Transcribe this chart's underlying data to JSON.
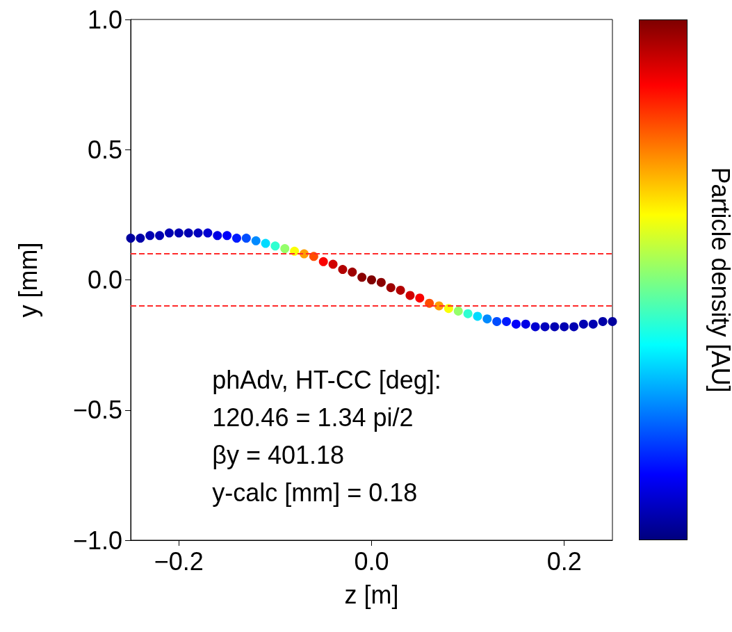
{
  "chart_data": {
    "type": "scatter",
    "xlabel": "z [m]",
    "ylabel": "y [mm]",
    "clabel": "Particle density [AU]",
    "marker": "circle",
    "annotations": [
      "phAdv, HT-CC [deg]:",
      "120.46 = 1.34 pi/2",
      "βy = 401.18",
      "y-calc [mm] = 0.18"
    ],
    "x": [
      -0.25,
      -0.24,
      -0.23,
      -0.22,
      -0.21,
      -0.2,
      -0.19,
      -0.18,
      -0.17,
      -0.16,
      -0.15,
      -0.14,
      -0.13,
      -0.12,
      -0.11,
      -0.1,
      -0.09,
      -0.08,
      -0.07,
      -0.06,
      -0.05,
      -0.04,
      -0.03,
      -0.02,
      -0.01,
      0,
      0.01,
      0.02,
      0.03,
      0.04,
      0.05,
      0.06,
      0.07,
      0.08,
      0.09,
      0.1,
      0.11,
      0.12,
      0.13,
      0.14,
      0.15,
      0.16,
      0.17,
      0.18,
      0.19,
      0.2,
      0.21,
      0.22,
      0.23,
      0.24,
      0.25
    ],
    "values": [
      0.16,
      0.16,
      0.17,
      0.17,
      0.18,
      0.18,
      0.18,
      0.18,
      0.18,
      0.17,
      0.17,
      0.16,
      0.16,
      0.15,
      0.14,
      0.13,
      0.12,
      0.11,
      0.1,
      0.09,
      0.07,
      0.06,
      0.04,
      0.03,
      0.01,
      0,
      -0.01,
      -0.03,
      -0.04,
      -0.06,
      -0.07,
      -0.09,
      -0.1,
      -0.11,
      -0.12,
      -0.13,
      -0.14,
      -0.15,
      -0.16,
      -0.16,
      -0.17,
      -0.17,
      -0.18,
      -0.18,
      -0.18,
      -0.18,
      -0.18,
      -0.17,
      -0.17,
      -0.16,
      -0.16
    ],
    "colors": [
      "#00009e",
      "#0000a8",
      "#0000b2",
      "#0000b2",
      "#0000b2",
      "#0000b2",
      "#0000b2",
      "#0000bd",
      "#0000d1",
      "#0000e5",
      "#0000fa",
      "#001aff",
      "#004dff",
      "#008aff",
      "#00dbff",
      "#2effd1",
      "#94ff6b",
      "#faff05",
      "#ff9e00",
      "#ff4d00",
      "#fa0000",
      "#d10000",
      "#b20000",
      "#9e0000",
      "#8a0000",
      "#800000",
      "#8a0000",
      "#9e0000",
      "#b20000",
      "#d10000",
      "#fa0000",
      "#ff4d00",
      "#ff9e00",
      "#faff05",
      "#94ff6b",
      "#2effd1",
      "#00dbff",
      "#008aff",
      "#004dff",
      "#001aff",
      "#0000fa",
      "#0000e5",
      "#0000d1",
      "#0000bd",
      "#0000b2",
      "#0000b2",
      "#0000b2",
      "#0000b2",
      "#0000b2",
      "#0000a8",
      "#00009e"
    ],
    "xlim": [
      -0.25,
      0.25
    ],
    "ylim": [
      -1,
      1
    ],
    "xticks": [
      {
        "value": -0.2,
        "label": "−0.2"
      },
      {
        "value": 0,
        "label": "0.0"
      },
      {
        "value": 0.2,
        "label": "0.2"
      }
    ],
    "yticks": [
      {
        "value": -1,
        "label": "−1.0"
      },
      {
        "value": -0.5,
        "label": "−0.5"
      },
      {
        "value": 0,
        "label": "0.0"
      },
      {
        "value": 0.5,
        "label": "0.5"
      },
      {
        "value": 1,
        "label": "1.0"
      }
    ],
    "ref_lines": [
      {
        "axis": "y",
        "value": 0.1,
        "color": "#ff2a2a",
        "line_style": "dashed"
      },
      {
        "axis": "y",
        "value": -0.1,
        "color": "#ff2a2a",
        "line_style": "dashed"
      }
    ]
  }
}
